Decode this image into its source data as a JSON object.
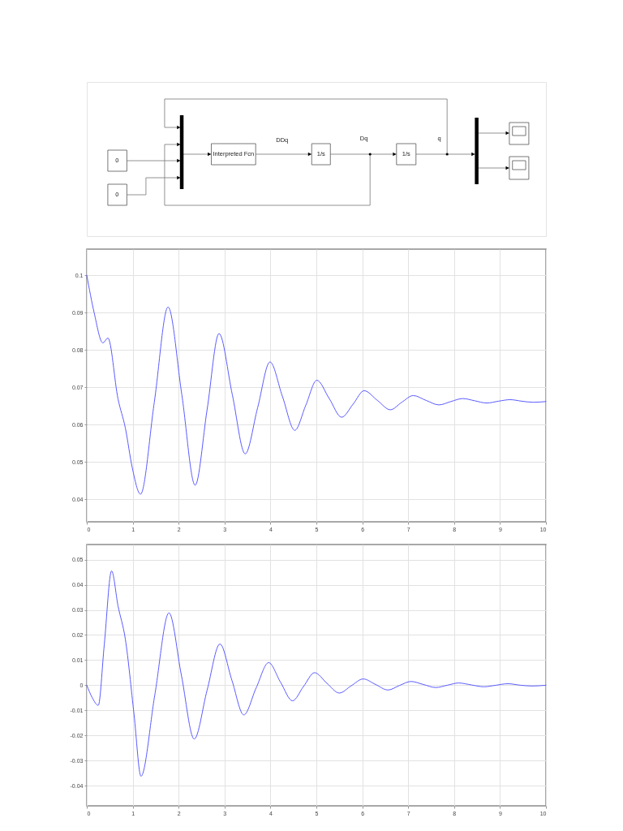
{
  "chart_data": [
    {
      "type": "other",
      "annotations": [
        "0",
        "0",
        "Interpreted Fcn",
        "DDq",
        "1/s",
        "Dq",
        "1/s",
        "q"
      ]
    },
    {
      "type": "line",
      "x": [
        0,
        0.16,
        0.35,
        0.46,
        0.68,
        0.84,
        0.99,
        1.17,
        1.47,
        1.77,
        2.07,
        2.36,
        2.62,
        2.88,
        3.17,
        3.45,
        3.72,
        3.99,
        4.26,
        4.53,
        4.77,
        5.01,
        5.28,
        5.55,
        5.8,
        6.04,
        6.33,
        6.61,
        6.86,
        7.11,
        7.39,
        7.67,
        7.93,
        8.19,
        8.45,
        8.71,
        8.97,
        9.22,
        9.47,
        9.72,
        10
      ],
      "series": [
        {
          "color": "#5b5bff",
          "line_style": "solid",
          "values": [
            0.1,
            0.09,
            0.0819,
            0.0832,
            0.0669,
            0.0591,
            0.0485,
            0.0414,
            0.066,
            0.0915,
            0.068,
            0.0438,
            0.064,
            0.0844,
            0.068,
            0.0522,
            0.0645,
            0.0768,
            0.0676,
            0.0585,
            0.0652,
            0.0719,
            0.067,
            0.062,
            0.0655,
            0.0691,
            0.0665,
            0.064,
            0.066,
            0.0678,
            0.0665,
            0.0653,
            0.0662,
            0.067,
            0.0664,
            0.0658,
            0.0663,
            0.0667,
            0.0663,
            0.066,
            0.0662
          ]
        }
      ],
      "xlim": [
        0,
        10
      ],
      "xticks": [
        0,
        1,
        2,
        3,
        4,
        5,
        6,
        7,
        8,
        9,
        10
      ],
      "ylim": [
        0.034,
        0.107
      ],
      "yticks": [
        0.04,
        0.05,
        0.06,
        0.07,
        0.08,
        0.09,
        0.1
      ],
      "grid": true
    },
    {
      "type": "line",
      "x": [
        0,
        0.12,
        0.25,
        0.38,
        0.54,
        0.68,
        0.84,
        1.03,
        1.18,
        1.48,
        1.79,
        2.06,
        2.34,
        2.62,
        2.9,
        3.16,
        3.42,
        3.69,
        3.96,
        4.22,
        4.48,
        4.72,
        4.96,
        5.23,
        5.5,
        5.76,
        6.02,
        6.29,
        6.56,
        6.81,
        7.06,
        7.33,
        7.6,
        7.85,
        8.1,
        8.38,
        8.65,
        8.91,
        9.17,
        9.45,
        9.7,
        10
      ],
      "series": [
        {
          "color": "#5b5bff",
          "line_style": "solid",
          "values": [
            0,
            -0.005,
            -0.008,
            0.016,
            0.0455,
            0.0316,
            0.0183,
            -0.0118,
            -0.0362,
            -0.004,
            0.0288,
            0.004,
            -0.0214,
            -0.002,
            0.0164,
            0.002,
            -0.0118,
            -0.001,
            0.009,
            0.0012,
            -0.0062,
            -0.0005,
            0.005,
            0.0008,
            -0.0031,
            -0.0002,
            0.0025,
            0.0003,
            -0.0019,
            -0.0001,
            0.0015,
            0.0003,
            -0.0009,
            0,
            0.0009,
            0.0001,
            -0.0006,
            0,
            0.0006,
            0,
            -0.0003,
            0
          ]
        }
      ],
      "xlim": [
        0,
        10
      ],
      "xticks": [
        0,
        1,
        2,
        3,
        4,
        5,
        6,
        7,
        8,
        9,
        10
      ],
      "ylim": [
        -0.048,
        0.056
      ],
      "yticks": [
        -0.04,
        -0.03,
        -0.02,
        -0.01,
        0,
        0.01,
        0.02,
        0.03,
        0.04,
        0.05
      ],
      "grid": true
    }
  ]
}
